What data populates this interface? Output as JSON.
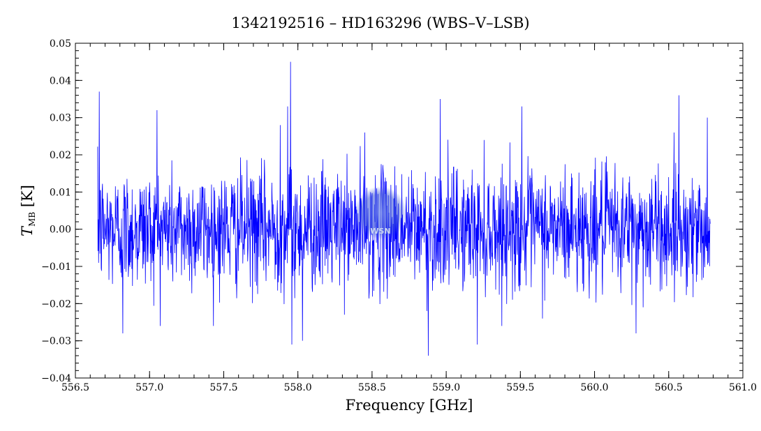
{
  "chart_data": {
    "type": "line",
    "title": "1342192516 – HD163296 (WBS–V–LSB)",
    "xlabel": "Frequency [GHz]",
    "ylabel_main": "T",
    "ylabel_sub": "MB",
    "ylabel_unit": " [K]",
    "xlim": [
      556.5,
      561.0
    ],
    "ylim": [
      -0.04,
      0.05
    ],
    "xticks": [
      "556.5",
      "557.0",
      "557.5",
      "558.0",
      "558.5",
      "559.0",
      "559.5",
      "560.0",
      "560.5",
      "561.0"
    ],
    "yticks": [
      "−0.04",
      "−0.03",
      "−0.02",
      "−0.01",
      "0.00",
      "0.01",
      "0.02",
      "0.03",
      "0.04",
      "0.05"
    ],
    "series": [
      {
        "color": "#0000ff",
        "x_range": [
          556.65,
          560.78
        ],
        "noise_rms": 0.008,
        "peaks": [
          {
            "x": 556.66,
            "y": 0.037
          },
          {
            "x": 557.05,
            "y": 0.032
          },
          {
            "x": 557.93,
            "y": 0.033
          },
          {
            "x": 557.95,
            "y": 0.045
          },
          {
            "x": 557.96,
            "y": -0.031
          },
          {
            "x": 557.88,
            "y": 0.028
          },
          {
            "x": 558.03,
            "y": -0.03
          },
          {
            "x": 558.45,
            "y": 0.026
          },
          {
            "x": 558.88,
            "y": -0.034
          },
          {
            "x": 558.96,
            "y": 0.035
          },
          {
            "x": 559.21,
            "y": -0.031
          },
          {
            "x": 559.51,
            "y": 0.033
          },
          {
            "x": 560.57,
            "y": 0.036
          },
          {
            "x": 560.76,
            "y": 0.03
          },
          {
            "x": 560.28,
            "y": -0.028
          },
          {
            "x": 556.82,
            "y": -0.028
          }
        ]
      }
    ],
    "grid": false,
    "watermark": "WSN"
  }
}
